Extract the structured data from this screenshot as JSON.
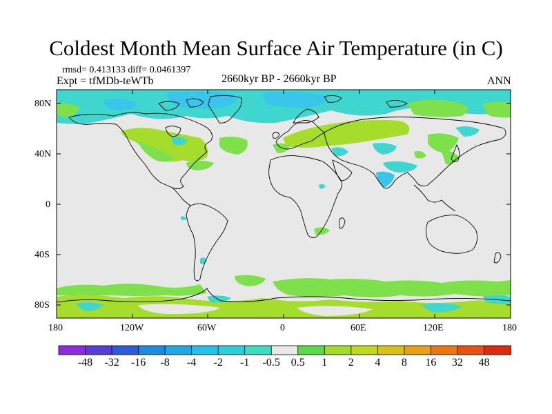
{
  "title": "Coldest Month Mean Surface Air Temperature (in C)",
  "stats": "rmsd= 0.413133 diff= 0.0461397",
  "experiment": "Expt = tfMDb-teWTb",
  "period": "2660kyr BP - 2660kyr BP",
  "season": "ANN",
  "lat_ticks": [
    "80N",
    "40N",
    "0",
    "40S",
    "80S"
  ],
  "lon_ticks": [
    "180",
    "120W",
    "60W",
    "0",
    "60E",
    "120E",
    "180"
  ],
  "colorbar": {
    "labels": [
      "-48",
      "-32",
      "-16",
      "-8",
      "-4",
      "-2",
      "-1",
      "-0.5",
      "0.5",
      "1",
      "2",
      "4",
      "8",
      "16",
      "32",
      "48"
    ],
    "colors": [
      "#8c2be0",
      "#5a3cd8",
      "#2f5ad8",
      "#1e8ae0",
      "#1ea8e6",
      "#28c0e8",
      "#2ccfd8",
      "#3cdcc2",
      "#e8e8e8",
      "#5cd848",
      "#a0dc28",
      "#c0d820",
      "#d8c018",
      "#e8a014",
      "#e87814",
      "#e85014",
      "#e02a10"
    ]
  },
  "colors": {
    "background_field": "#e8e8e8",
    "cyan": "#3fd6cf",
    "light_blue": "#39c6ea",
    "green_light": "#7ee04a",
    "green": "#a6dc2c",
    "coast": "#000000"
  }
}
